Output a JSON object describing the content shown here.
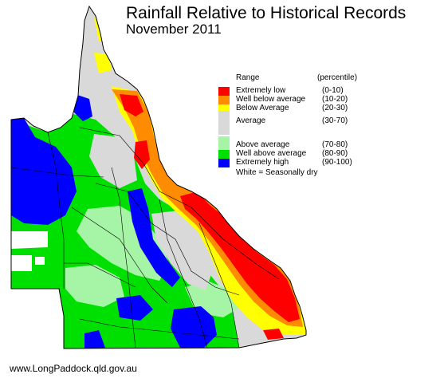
{
  "title": "Rainfall Relative to Historical Records",
  "subtitle": "November 2011",
  "legend": {
    "header_range": "Range",
    "header_percentile": "(percentile)",
    "items": [
      {
        "label": "Extremely low",
        "range": "(0-10)",
        "color": "#ff0000"
      },
      {
        "label": "Well below average",
        "range": "(10-20)",
        "color": "#ff8c00"
      },
      {
        "label": "Below Average",
        "range": "(20-30)",
        "color": "#ffff00"
      },
      {
        "label": "Average",
        "range": "(30-70)",
        "color": "#d9d9d9"
      },
      {
        "label": "Above average",
        "range": "(70-80)",
        "color": "#a6f5a6"
      },
      {
        "label": "Well above average",
        "range": "(80-90)",
        "color": "#00e000"
      },
      {
        "label": "Extremely high",
        "range": "(90-100)",
        "color": "#0000ff"
      }
    ],
    "dry_note": "White = Seasonally dry"
  },
  "footer": "www.LongPaddock.qld.gov.au",
  "colors": {
    "extremely_low": "#ff0000",
    "well_below": "#ff8c00",
    "below": "#ffff00",
    "average": "#d9d9d9",
    "above": "#a6f5a6",
    "well_above": "#00e000",
    "extremely_high": "#0000ff",
    "seasonally_dry": "#ffffff"
  }
}
